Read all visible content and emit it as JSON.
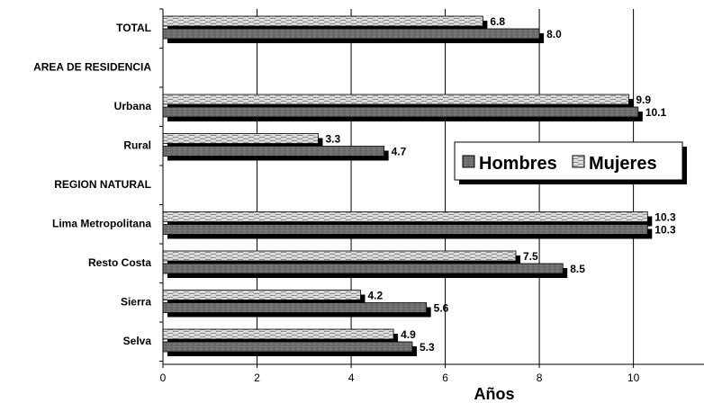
{
  "chart_data": {
    "type": "bar",
    "orientation": "horizontal",
    "categories": [
      "TOTAL",
      "AREA DE RESIDENCIA",
      "Urbana",
      "Rural",
      "REGION NATURAL",
      "Lima Metropolitana",
      "Resto Costa",
      "Sierra",
      "Selva"
    ],
    "series": [
      {
        "name": "Mujeres",
        "values": [
          6.8,
          null,
          9.9,
          3.3,
          null,
          10.3,
          7.5,
          4.2,
          4.9
        ],
        "labels": [
          "6.8",
          "",
          "9.9",
          "3.3",
          "",
          "10.3",
          "7.5",
          "4.2",
          "4.9"
        ],
        "color": "#cfcfcf"
      },
      {
        "name": "Hombres",
        "values": [
          8.0,
          null,
          10.1,
          4.7,
          null,
          10.3,
          8.5,
          5.6,
          5.3
        ],
        "labels": [
          "8.0",
          "",
          "10.1",
          "4.7",
          "",
          "10.3",
          "8.5",
          "5.6",
          "5.3"
        ],
        "color": "#6e6e6e"
      }
    ],
    "xlabel": "Años",
    "xlim": [
      0,
      11.5
    ],
    "xticks": [
      "0",
      "2",
      "4",
      "6",
      "8",
      "10"
    ],
    "grid": true,
    "legend_position": "right"
  },
  "legend": {
    "hombres": "Hombres",
    "mujeres": "Mujeres"
  }
}
